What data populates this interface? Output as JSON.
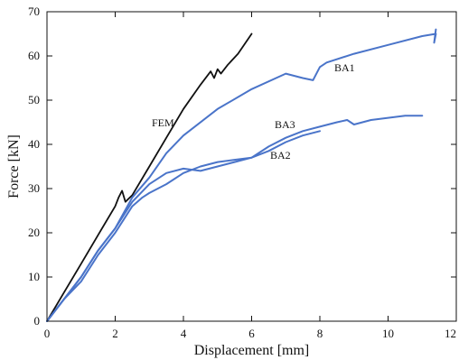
{
  "chart_data": {
    "type": "line",
    "title": "",
    "xlabel": "Displacement [mm]",
    "ylabel": "Force [kN]",
    "xlim": [
      0,
      12
    ],
    "ylim": [
      0,
      70
    ],
    "xticks": [
      "0",
      "2",
      "4",
      "6",
      "8",
      "10",
      "12"
    ],
    "yticks": [
      "0",
      "10",
      "20",
      "30",
      "40",
      "50",
      "60",
      "70"
    ],
    "grid": false,
    "legend": "inline labels",
    "series": [
      {
        "name": "FEM",
        "color": "#111111",
        "x": [
          0,
          0.5,
          1,
          1.5,
          2,
          2.1,
          2.2,
          2.3,
          2.5,
          3,
          3.5,
          4,
          4.5,
          4.8,
          4.9,
          5,
          5.1,
          5.3,
          5.6,
          6
        ],
        "y": [
          0,
          6.5,
          13,
          19.5,
          26,
          28,
          29.5,
          27,
          28.5,
          35,
          41.5,
          48,
          53.5,
          56.5,
          55,
          57,
          56,
          58,
          60.5,
          65
        ]
      },
      {
        "name": "BA1",
        "color": "#4a74c9",
        "x": [
          0,
          0.5,
          1,
          1.5,
          2,
          2.5,
          3,
          3.5,
          4,
          5,
          6,
          7,
          7.5,
          7.8,
          8,
          8.2,
          9,
          10,
          11,
          11.4,
          11.35,
          11.4
        ],
        "y": [
          0,
          5,
          10,
          16,
          21,
          28,
          32.5,
          38,
          42,
          48,
          52.5,
          56,
          55,
          54.5,
          57.5,
          58.5,
          60.5,
          62.5,
          64.5,
          65,
          63,
          66
        ]
      },
      {
        "name": "BA2",
        "color": "#4a74c9",
        "x": [
          0,
          0.5,
          1,
          1.5,
          2,
          2.5,
          3,
          3.5,
          4,
          4.5,
          5,
          5.5,
          6,
          6.5,
          7,
          7.5,
          8
        ],
        "y": [
          0,
          5,
          10,
          16,
          21,
          27,
          31,
          33.5,
          34.5,
          34,
          35,
          36,
          37,
          38.5,
          40.5,
          42,
          43
        ]
      },
      {
        "name": "BA3",
        "color": "#4a74c9",
        "x": [
          0,
          0.5,
          1,
          1.5,
          2,
          2.5,
          2.8,
          3,
          3.5,
          4,
          4.5,
          5,
          5.5,
          6,
          6.5,
          7,
          7.5,
          8,
          8.5,
          8.8,
          9,
          9.5,
          10,
          10.5,
          11
        ],
        "y": [
          0,
          5,
          9,
          15,
          20,
          26,
          28,
          29,
          31,
          33.5,
          35,
          36,
          36.5,
          37,
          39.5,
          41.5,
          43,
          44,
          45,
          45.5,
          44.5,
          45.5,
          46,
          46.5,
          46.5
        ]
      }
    ],
    "annotations": [
      {
        "text": "FEM",
        "x": 3.85,
        "y": 46.5
      },
      {
        "text": "BA1",
        "x": 8.55,
        "y": 57
      },
      {
        "text": "BA3",
        "x": 6.7,
        "y": 44.5
      },
      {
        "text": "BA2",
        "x": 6.7,
        "y": 37.5
      }
    ]
  }
}
